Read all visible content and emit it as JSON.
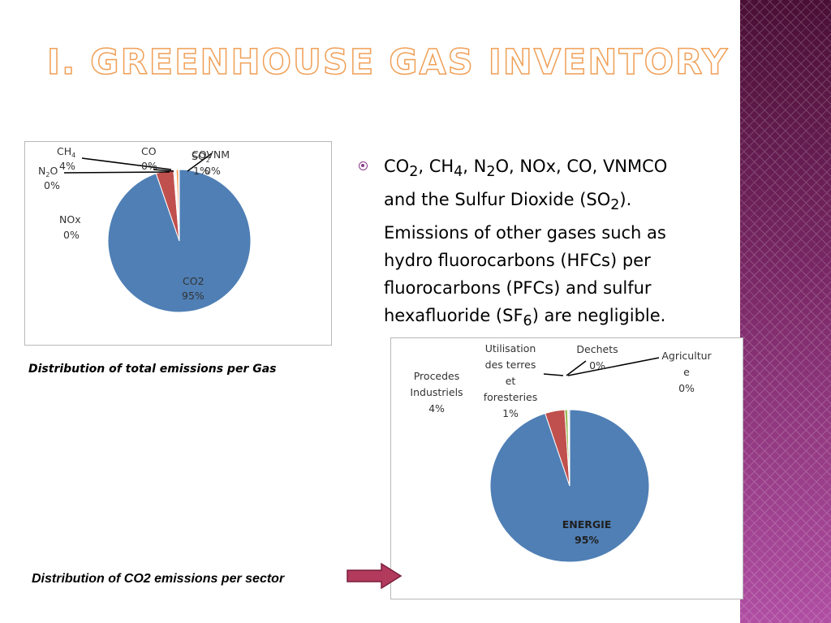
{
  "title": "I. GREENHOUSE GAS INVENTORY",
  "bullet": {
    "line1_parts": [
      "CO",
      "2",
      ", CH",
      "4",
      ", N",
      "2",
      "O, NOx, CO, VNMCO"
    ],
    "line2_parts": [
      "and the Sulfur Dioxide (SO",
      "2",
      ")."
    ],
    "line3": "Emissions of other gases such as",
    "line4": "hydro fluorocarbons (HFCs) per",
    "line5": "fluorocarbons (PFCs) and sulfur",
    "line6_parts": [
      "hexafluoride (SF",
      "6",
      ") are negligible."
    ]
  },
  "captions": {
    "gas": "Distribution of total emissions per Gas",
    "sector": "Distribution of CO2 emissions per sector"
  },
  "chart_data": [
    {
      "type": "pie",
      "slices": [
        {
          "label": "CO2",
          "pct_label": "95%",
          "value": 95,
          "color": "#4f7fb5"
        },
        {
          "label": "CH4",
          "pct_label": "4%",
          "value": 4,
          "color": "#c0504d"
        },
        {
          "label": "N2O",
          "pct_label": "0%",
          "value": 0.2,
          "color": "#9bbb59"
        },
        {
          "label": "NOx",
          "pct_label": "0%",
          "value": 0.2,
          "color": "#8064a2"
        },
        {
          "label": "CO",
          "pct_label": "0%",
          "value": 0.2,
          "color": "#4bacc6"
        },
        {
          "label": "SO2",
          "pct_label": "1%",
          "value": 0.5,
          "color": "#f79646"
        },
        {
          "label": "COVNM",
          "pct_label": "0%",
          "value": 0.2,
          "color": "#2c4d75"
        }
      ]
    },
    {
      "type": "pie",
      "slices": [
        {
          "label": "ENERGIE",
          "pct_label": "95%",
          "value": 95,
          "color": "#4f7fb5"
        },
        {
          "label": "Procedes Industriels",
          "pct_label": "4%",
          "value": 4,
          "color": "#c0504d"
        },
        {
          "label": "Utilisation des terres et foresteries",
          "pct_label": "1%",
          "value": 0.6,
          "color": "#9bbb59"
        },
        {
          "label": "Dechets",
          "pct_label": "0%",
          "value": 0.2,
          "color": "#8064a2"
        },
        {
          "label": "Agriculture",
          "pct_label": "0%",
          "value": 0.2,
          "color": "#4bacc6"
        }
      ]
    }
  ],
  "label_text": {
    "ch4": "CH",
    "ch4_sub": "4",
    "ch4_pct": "4%",
    "co": "CO",
    "co_pct": "0%",
    "so2": "SO",
    "so2_sub": "2",
    "so2_pct": "1%",
    "covnm": "COVNM",
    "covnm_pct": "0%",
    "n2o_a": "N",
    "n2o_sub": "2",
    "n2o_b": "O",
    "n2o_pct": "0%",
    "nox": "NOx",
    "nox_pct": "0%",
    "co2": "CO2",
    "co2_pct": "95%",
    "ut1": "Utilisation",
    "ut2": "des terres",
    "ut3": "et",
    "ut4": "foresteries",
    "ut_pct": "1%",
    "dech": "Dechets",
    "dech_pct": "0%",
    "agr1": "Agricultur",
    "agr2": "e",
    "agr_pct": "0%",
    "proc1": "Procedes",
    "proc2": "Industriels",
    "proc_pct": "4%",
    "en": "ENERGIE",
    "en_pct": "95%"
  }
}
